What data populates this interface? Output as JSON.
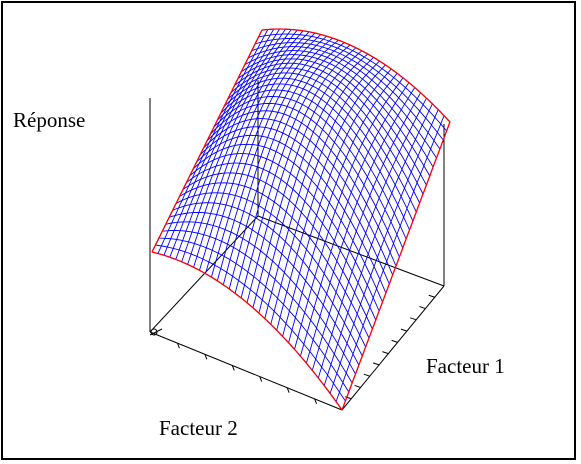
{
  "labels": {
    "z_axis": "Réponse",
    "factor1": "Facteur 1",
    "factor2": "Facteur 2"
  },
  "colors": {
    "mesh": "#0000ff",
    "boundary": "#ff0000",
    "axes": "#000000",
    "frame": "#000000"
  },
  "surface": {
    "type": "3d-surface",
    "shape": "concave-down dome (response maximum)",
    "mesh_divisions": 32
  }
}
